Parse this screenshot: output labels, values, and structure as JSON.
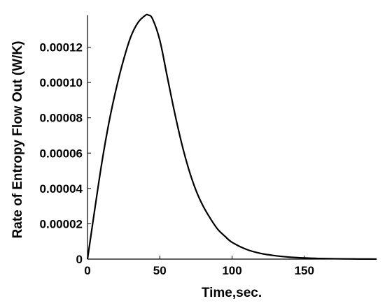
{
  "chart_data": {
    "type": "line",
    "xlabel": "Time,sec.",
    "ylabel": "Rate of Entropy Flow Out (W/K)",
    "xlim": [
      0,
      200
    ],
    "ylim": [
      0,
      0.000138
    ],
    "xticks": [
      0,
      50,
      100,
      150
    ],
    "xtick_labels": [
      "0",
      "50",
      "100",
      "150"
    ],
    "yticks": [
      0,
      2e-05,
      4e-05,
      6e-05,
      8e-05,
      0.0001,
      0.00012
    ],
    "ytick_labels": [
      "0",
      "0.00002",
      "0.00004",
      "0.00006",
      "0.00008",
      "0.00010",
      "0.00012"
    ],
    "grid": false,
    "line_color": "#000000",
    "series": [
      {
        "x": [
          0,
          5,
          10,
          15,
          20,
          25,
          30,
          35,
          40,
          42,
          45,
          50,
          55,
          60,
          65,
          70,
          75,
          80,
          85,
          90,
          95,
          100,
          110,
          120,
          130,
          140,
          150,
          160,
          170,
          180,
          190,
          200
        ],
        "values": [
          0,
          2.8e-05,
          5.5e-05,
          7.8e-05,
          9.7e-05,
          0.000113,
          0.000126,
          0.000134,
          0.000138,
          0.0001382,
          0.000136,
          0.000124,
          0.000104,
          8.4e-05,
          6.6e-05,
          5.1e-05,
          3.9e-05,
          3e-05,
          2.3e-05,
          1.7e-05,
          1.3e-05,
          9.5e-06,
          5.5e-06,
          3.2e-06,
          1.9e-06,
          1.1e-06,
          6.5e-07,
          3.8e-07,
          2.2e-07,
          1.2e-07,
          6e-08,
          2e-08
        ]
      }
    ]
  }
}
